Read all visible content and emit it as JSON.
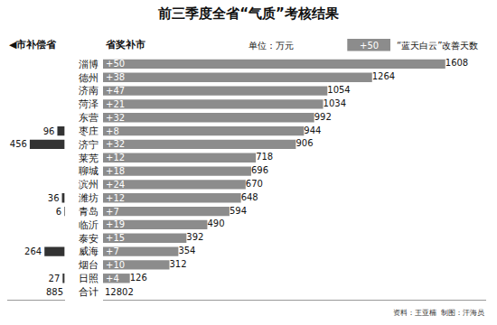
{
  "chart_data": {
    "type": "bar",
    "orientation": "horizontal",
    "title": "前三季度全省“气质”考核结果",
    "categories": [
      "淄博",
      "德州",
      "济南",
      "菏泽",
      "东营",
      "枣庄",
      "济宁",
      "莱芜",
      "聊城",
      "滨州",
      "潍坊",
      "青岛",
      "临沂",
      "泰安",
      "威海",
      "烟台",
      "日照"
    ],
    "series": [
      {
        "name": "省奖补市",
        "color": "#8c8c8c",
        "data_labels": true,
        "values": [
          1608,
          1264,
          1054,
          1034,
          992,
          944,
          906,
          718,
          696,
          670,
          648,
          594,
          490,
          392,
          354,
          312,
          126
        ]
      },
      {
        "name": "◀市补偿省",
        "color": "#333333",
        "axis": "x2",
        "data_labels": true,
        "values": [
          null,
          null,
          null,
          null,
          null,
          96,
          456,
          null,
          null,
          null,
          36,
          6,
          null,
          null,
          264,
          null,
          27
        ]
      }
    ],
    "days": {
      "name": "“蓝天白云”改善天数",
      "values": [
        50,
        38,
        47,
        21,
        32,
        8,
        32,
        12,
        18,
        24,
        12,
        7,
        19,
        15,
        7,
        10,
        4
      ],
      "value_labels": [
        "+50",
        "+38",
        "+47",
        "+21",
        "+32",
        "+8",
        "+32",
        "+12",
        "+18",
        "+24",
        "+12",
        "+7",
        "+19",
        "+15",
        "+7",
        "+10",
        "+4"
      ]
    },
    "total": {
      "label": "合计",
      "values": [
        12802,
        885
      ]
    },
    "xlim": [
      0,
      1800
    ],
    "x2lim": [
      0,
      750
    ],
    "tick_labels": "y",
    "grid": false,
    "annotations": [
      "单位：万元",
      "资料：王亚楠  制图：汗海员"
    ]
  }
}
